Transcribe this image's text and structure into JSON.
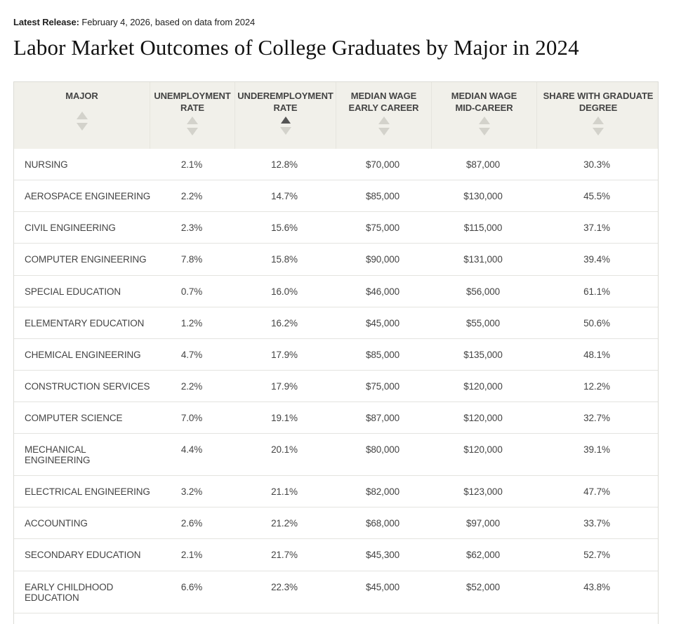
{
  "release": {
    "label": "Latest Release:",
    "text": " February 4, 2026, based on data from 2024"
  },
  "title": "Labor Market Outcomes of College Graduates by Major in 2024",
  "columns": [
    {
      "label_line1": "MAJOR",
      "label_line2": ""
    },
    {
      "label_line1": "UNEMPLOYMENT",
      "label_line2": "RATE"
    },
    {
      "label_line1": "UNDEREMPLOYMENT",
      "label_line2": "RATE"
    },
    {
      "label_line1": "MEDIAN WAGE",
      "label_line2": "EARLY CAREER"
    },
    {
      "label_line1": "MEDIAN WAGE",
      "label_line2": "MID-CAREER"
    },
    {
      "label_line1": "SHARE WITH GRADUATE",
      "label_line2": "DEGREE"
    }
  ],
  "sort": {
    "active_column": "UNDEREMPLOYMENT RATE",
    "direction": "ascending"
  },
  "rows": [
    {
      "major": "NURSING",
      "unemployment": "2.1%",
      "underemployment": "12.8%",
      "wage_early": "$70,000",
      "wage_mid": "$87,000",
      "grad_share": "30.3%"
    },
    {
      "major": "AEROSPACE ENGINEERING",
      "unemployment": "2.2%",
      "underemployment": "14.7%",
      "wage_early": "$85,000",
      "wage_mid": "$130,000",
      "grad_share": "45.5%"
    },
    {
      "major": "CIVIL ENGINEERING",
      "unemployment": "2.3%",
      "underemployment": "15.6%",
      "wage_early": "$75,000",
      "wage_mid": "$115,000",
      "grad_share": "37.1%"
    },
    {
      "major": "COMPUTER ENGINEERING",
      "unemployment": "7.8%",
      "underemployment": "15.8%",
      "wage_early": "$90,000",
      "wage_mid": "$131,000",
      "grad_share": "39.4%"
    },
    {
      "major": "SPECIAL EDUCATION",
      "unemployment": "0.7%",
      "underemployment": "16.0%",
      "wage_early": "$46,000",
      "wage_mid": "$56,000",
      "grad_share": "61.1%"
    },
    {
      "major": "ELEMENTARY EDUCATION",
      "unemployment": "1.2%",
      "underemployment": "16.2%",
      "wage_early": "$45,000",
      "wage_mid": "$55,000",
      "grad_share": "50.6%"
    },
    {
      "major": "CHEMICAL ENGINEERING",
      "unemployment": "4.7%",
      "underemployment": "17.9%",
      "wage_early": "$85,000",
      "wage_mid": "$135,000",
      "grad_share": "48.1%"
    },
    {
      "major": "CONSTRUCTION SERVICES",
      "unemployment": "2.2%",
      "underemployment": "17.9%",
      "wage_early": "$75,000",
      "wage_mid": "$120,000",
      "grad_share": "12.2%"
    },
    {
      "major": "COMPUTER SCIENCE",
      "unemployment": "7.0%",
      "underemployment": "19.1%",
      "wage_early": "$87,000",
      "wage_mid": "$120,000",
      "grad_share": "32.7%"
    },
    {
      "major": "MECHANICAL ENGINEERING",
      "unemployment": "4.4%",
      "underemployment": "20.1%",
      "wage_early": "$80,000",
      "wage_mid": "$120,000",
      "grad_share": "39.1%"
    },
    {
      "major": "ELECTRICAL ENGINEERING",
      "unemployment": "3.2%",
      "underemployment": "21.1%",
      "wage_early": "$82,000",
      "wage_mid": "$123,000",
      "grad_share": "47.7%"
    },
    {
      "major": "ACCOUNTING",
      "unemployment": "2.6%",
      "underemployment": "21.2%",
      "wage_early": "$68,000",
      "wage_mid": "$97,000",
      "grad_share": "33.7%"
    },
    {
      "major": "SECONDARY EDUCATION",
      "unemployment": "2.1%",
      "underemployment": "21.7%",
      "wage_early": "$45,300",
      "wage_mid": "$62,000",
      "grad_share": "52.7%"
    },
    {
      "major": "EARLY CHILDHOOD EDUCATION",
      "unemployment": "6.6%",
      "underemployment": "22.3%",
      "wage_early": "$45,000",
      "wage_mid": "$52,000",
      "grad_share": "43.8%"
    }
  ]
}
